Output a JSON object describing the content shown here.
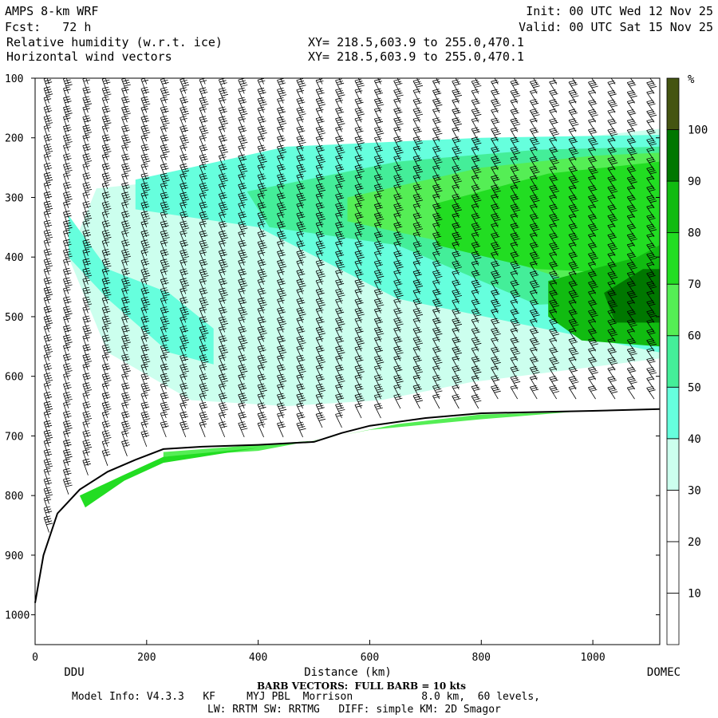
{
  "header": {
    "model": "AMPS 8-km WRF",
    "fcst": "Fcst:   72 h",
    "field1": "Relative humidity (w.r.t. ice)",
    "field2": "Horizontal wind vectors",
    "init": "Init: 00 UTC Wed 12 Nov 25",
    "valid": "Valid: 00 UTC Sat 15 Nov 25",
    "xy1": "XY= 218.5,603.9 to 255.0,470.1",
    "xy2": "XY= 218.5,603.9 to 255.0,470.1"
  },
  "footer": {
    "barb_note": "BARB VECTORS:  FULL BARB = 10 kts",
    "model_info": "Model Info: V4.3.3   KF     MYJ PBL  Morrison           8.0 km,  60 levels,",
    "physics": "LW: RRTM SW: RRTMG   DIFF: simple KM: 2D Smagor"
  },
  "colors": {
    "c30": "#ccffee",
    "c40": "#66ffdd",
    "c50": "#44ee99",
    "c60": "#55ee55",
    "c70": "#22dd22",
    "c80": "#11bb11",
    "c90": "#007700",
    "c100": "#445511",
    "terrain": "#000000",
    "barb": "#000000"
  },
  "chart_data": {
    "type": "cross-section",
    "xlabel": "Distance (km)",
    "xlim": [
      0,
      1120
    ],
    "xticks": [
      "0",
      "200",
      "400",
      "600",
      "800",
      "1000"
    ],
    "ylim": [
      1050,
      100
    ],
    "yticks": [
      "100",
      "200",
      "300",
      "400",
      "500",
      "600",
      "700",
      "800",
      "900",
      "1000"
    ],
    "endpoints": [
      "DDU",
      "DOMEC"
    ],
    "colorbar": {
      "unit": "%",
      "levels": [
        "10",
        "20",
        "30",
        "40",
        "50",
        "60",
        "70",
        "80",
        "90",
        "100"
      ]
    },
    "terrain_surface": {
      "x": [
        0,
        15,
        40,
        80,
        130,
        180,
        230,
        300,
        400,
        500,
        550,
        600,
        700,
        800,
        900,
        1000,
        1120
      ],
      "p": [
        980,
        900,
        830,
        790,
        760,
        740,
        722,
        718,
        715,
        710,
        695,
        683,
        670,
        662,
        660,
        658,
        655
      ]
    },
    "rh_regions": [
      {
        "level": "30",
        "x": [
          110,
          1120,
          1120,
          780,
          620,
          450,
          280,
          130,
          60
        ],
        "p": [
          285,
          185,
          570,
          610,
          640,
          650,
          640,
          560,
          400
        ]
      },
      {
        "level": "40",
        "x": [
          180,
          450,
          800,
          1120,
          1120,
          650,
          400,
          180
        ],
        "p": [
          270,
          215,
          200,
          195,
          560,
          470,
          350,
          320
        ]
      },
      {
        "level": "40",
        "x": [
          60,
          130,
          240,
          320,
          320,
          240,
          130,
          60
        ],
        "p": [
          330,
          420,
          460,
          520,
          580,
          560,
          470,
          400
        ]
      },
      {
        "level": "50",
        "x": [
          380,
          650,
          900,
          1120,
          1120,
          900,
          650,
          420
        ],
        "p": [
          290,
          240,
          220,
          215,
          470,
          480,
          380,
          350
        ]
      },
      {
        "level": "60",
        "x": [
          560,
          800,
          1000,
          1120,
          1120,
          960,
          760,
          560
        ],
        "p": [
          300,
          250,
          230,
          225,
          450,
          440,
          380,
          340
        ]
      },
      {
        "level": "70",
        "x": [
          720,
          920,
          1120,
          1120,
          900,
          720
        ],
        "p": [
          310,
          260,
          240,
          430,
          420,
          380
        ]
      },
      {
        "level": "80",
        "x": [
          920,
          1080,
          1120,
          1120,
          980,
          920
        ],
        "p": [
          440,
          400,
          380,
          550,
          540,
          500
        ]
      },
      {
        "level": "90",
        "x": [
          1020,
          1090,
          1120,
          1120,
          1040
        ],
        "p": [
          460,
          420,
          420,
          510,
          510
        ]
      },
      {
        "level": "60",
        "x": [
          230,
          500,
          650,
          800,
          960,
          800,
          600,
          400,
          230
        ],
        "p": [
          727,
          708,
          680,
          664,
          660,
          672,
          690,
          725,
          735
        ]
      },
      {
        "level": "70",
        "x": [
          80,
          160,
          230,
          400,
          230,
          160,
          90
        ],
        "p": [
          800,
          765,
          735,
          720,
          745,
          775,
          820
        ]
      }
    ]
  }
}
